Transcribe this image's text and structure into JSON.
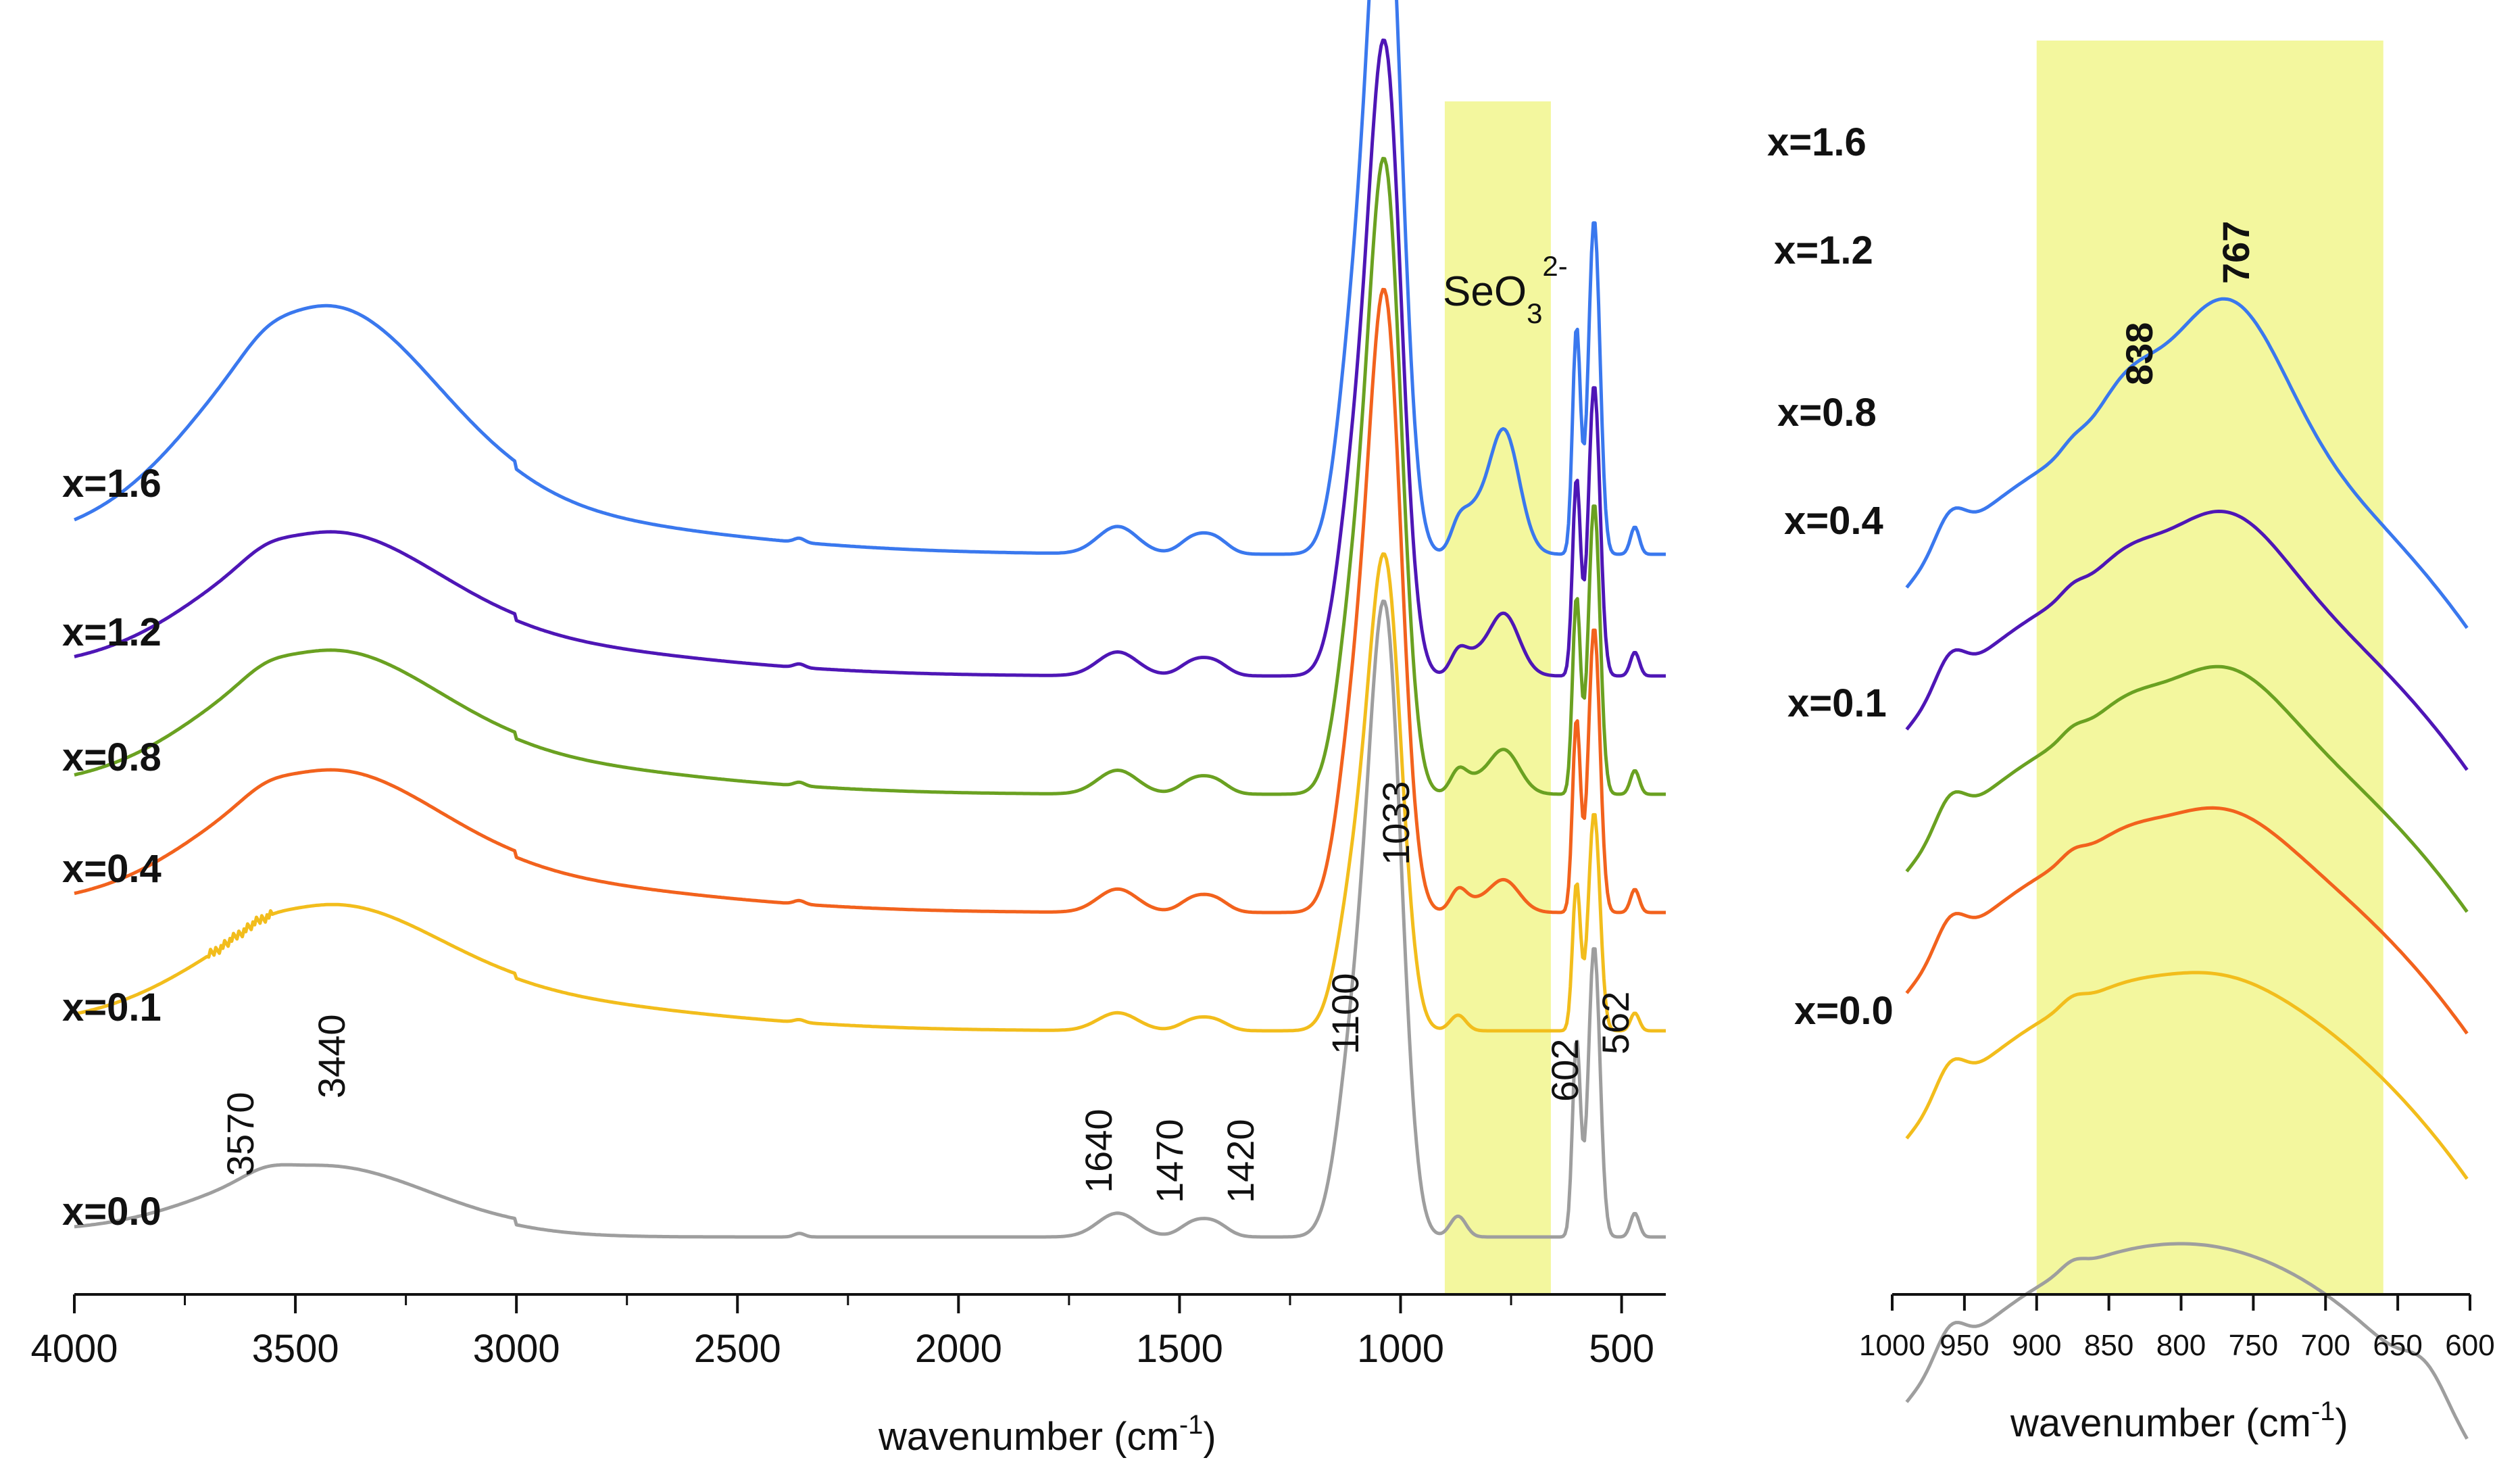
{
  "chart_data": [
    {
      "type": "line",
      "panel": "main",
      "xlabel": "wavenumber (cm-1)",
      "xlabel_parts": [
        "wavenumber (cm",
        "-1",
        ")"
      ],
      "xlim": [
        4000,
        400
      ],
      "x_ticks": [
        4000,
        3500,
        3000,
        2500,
        2000,
        1500,
        1000,
        500
      ],
      "y_ticks": false,
      "highlight_band": {
        "from": 900,
        "to": 660,
        "label": "SeO3 2-",
        "label_parts": [
          "SeO",
          "3",
          "2-"
        ],
        "color": "#f3f79e"
      },
      "series": [
        {
          "name": "x=0.0",
          "color": "#9e9e9e"
        },
        {
          "name": "x=0.1",
          "color": "#f2bd1c"
        },
        {
          "name": "x=0.4",
          "color": "#f2621d"
        },
        {
          "name": "x=0.8",
          "color": "#6aa121"
        },
        {
          "name": "x=1.2",
          "color": "#4e16b6"
        },
        {
          "name": "x=1.6",
          "color": "#3a78ee"
        }
      ],
      "annotations": [
        "3570",
        "3440",
        "1640",
        "1470",
        "1420",
        "1100",
        "1033",
        "602",
        "562"
      ]
    },
    {
      "type": "line",
      "panel": "inset",
      "xlabel": "wavenumber (cm-1)",
      "xlabel_parts": [
        "wavenumber (cm",
        "-1",
        ")"
      ],
      "xlim": [
        1000,
        600
      ],
      "x_ticks": [
        1000,
        950,
        900,
        850,
        800,
        750,
        700,
        650,
        600
      ],
      "y_ticks": false,
      "highlight_band": {
        "from": 900,
        "to": 660,
        "color": "#f3f79e"
      },
      "series": [
        {
          "name": "x=0.0",
          "color": "#9e9e9e"
        },
        {
          "name": "x=0.1",
          "color": "#f2bd1c"
        },
        {
          "name": "x=0.4",
          "color": "#f2621d"
        },
        {
          "name": "x=0.8",
          "color": "#6aa121"
        },
        {
          "name": "x=1.2",
          "color": "#4e16b6"
        },
        {
          "name": "x=1.6",
          "color": "#3a78ee"
        }
      ],
      "annotations": [
        "838",
        "767"
      ]
    }
  ]
}
